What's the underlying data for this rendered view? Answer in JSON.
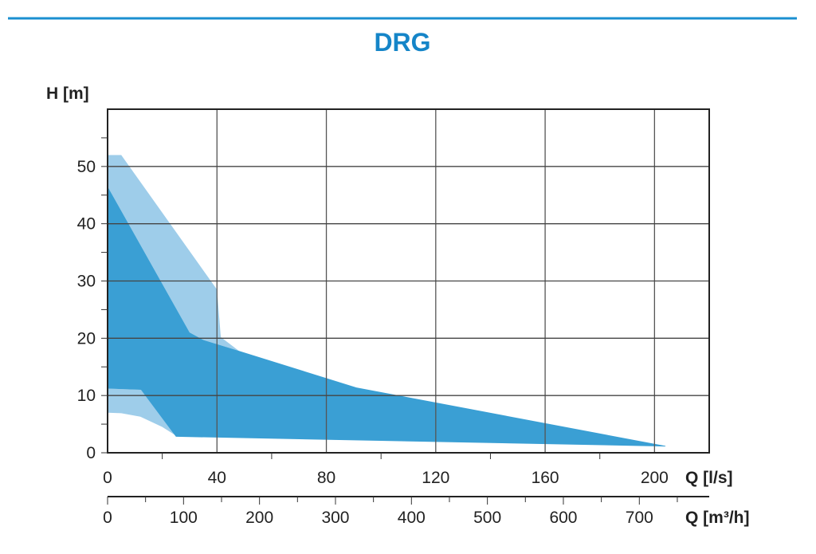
{
  "chart_data": {
    "type": "area",
    "title": "DRG",
    "ylabel": "H [m]",
    "xlabel": "Q [l/s]",
    "x2label": "Q [m³/h]",
    "xlim": [
      0,
      220
    ],
    "ylim": [
      0,
      60
    ],
    "x2lim": [
      0,
      792
    ],
    "xticks": [
      0,
      40,
      80,
      120,
      160,
      200
    ],
    "yticks": [
      0,
      10,
      20,
      30,
      40,
      50
    ],
    "x2ticks": [
      0,
      100,
      200,
      300,
      400,
      500,
      600,
      700
    ],
    "grid": true,
    "colors": {
      "title": "#1585c8",
      "rule": "#1a8fd0",
      "dark": "#3a9fd4",
      "light": "#9ecdea"
    },
    "series": [
      {
        "points": [
          [
            0,
            52
          ],
          [
            5,
            52
          ],
          [
            40,
            28.5
          ],
          [
            41.4,
            20.2
          ],
          [
            48,
            17.8
          ],
          [
            35,
            19.7
          ],
          [
            30,
            21
          ],
          [
            0,
            46.5
          ]
        ]
      },
      {
        "points": [
          [
            0,
            11.2
          ],
          [
            12.2,
            11
          ],
          [
            25,
            3
          ],
          [
            20,
            4.5
          ],
          [
            12,
            6.3
          ],
          [
            5,
            6.9
          ],
          [
            0,
            7
          ]
        ]
      },
      {
        "points": [
          [
            0,
            46.5
          ],
          [
            30,
            21
          ],
          [
            35,
            19.7
          ],
          [
            48,
            17.8
          ],
          [
            91,
            11.4
          ],
          [
            204,
            1.2
          ],
          [
            204,
            1.1
          ],
          [
            25,
            2.8
          ],
          [
            12.2,
            11
          ],
          [
            0,
            11.2
          ]
        ]
      }
    ]
  }
}
